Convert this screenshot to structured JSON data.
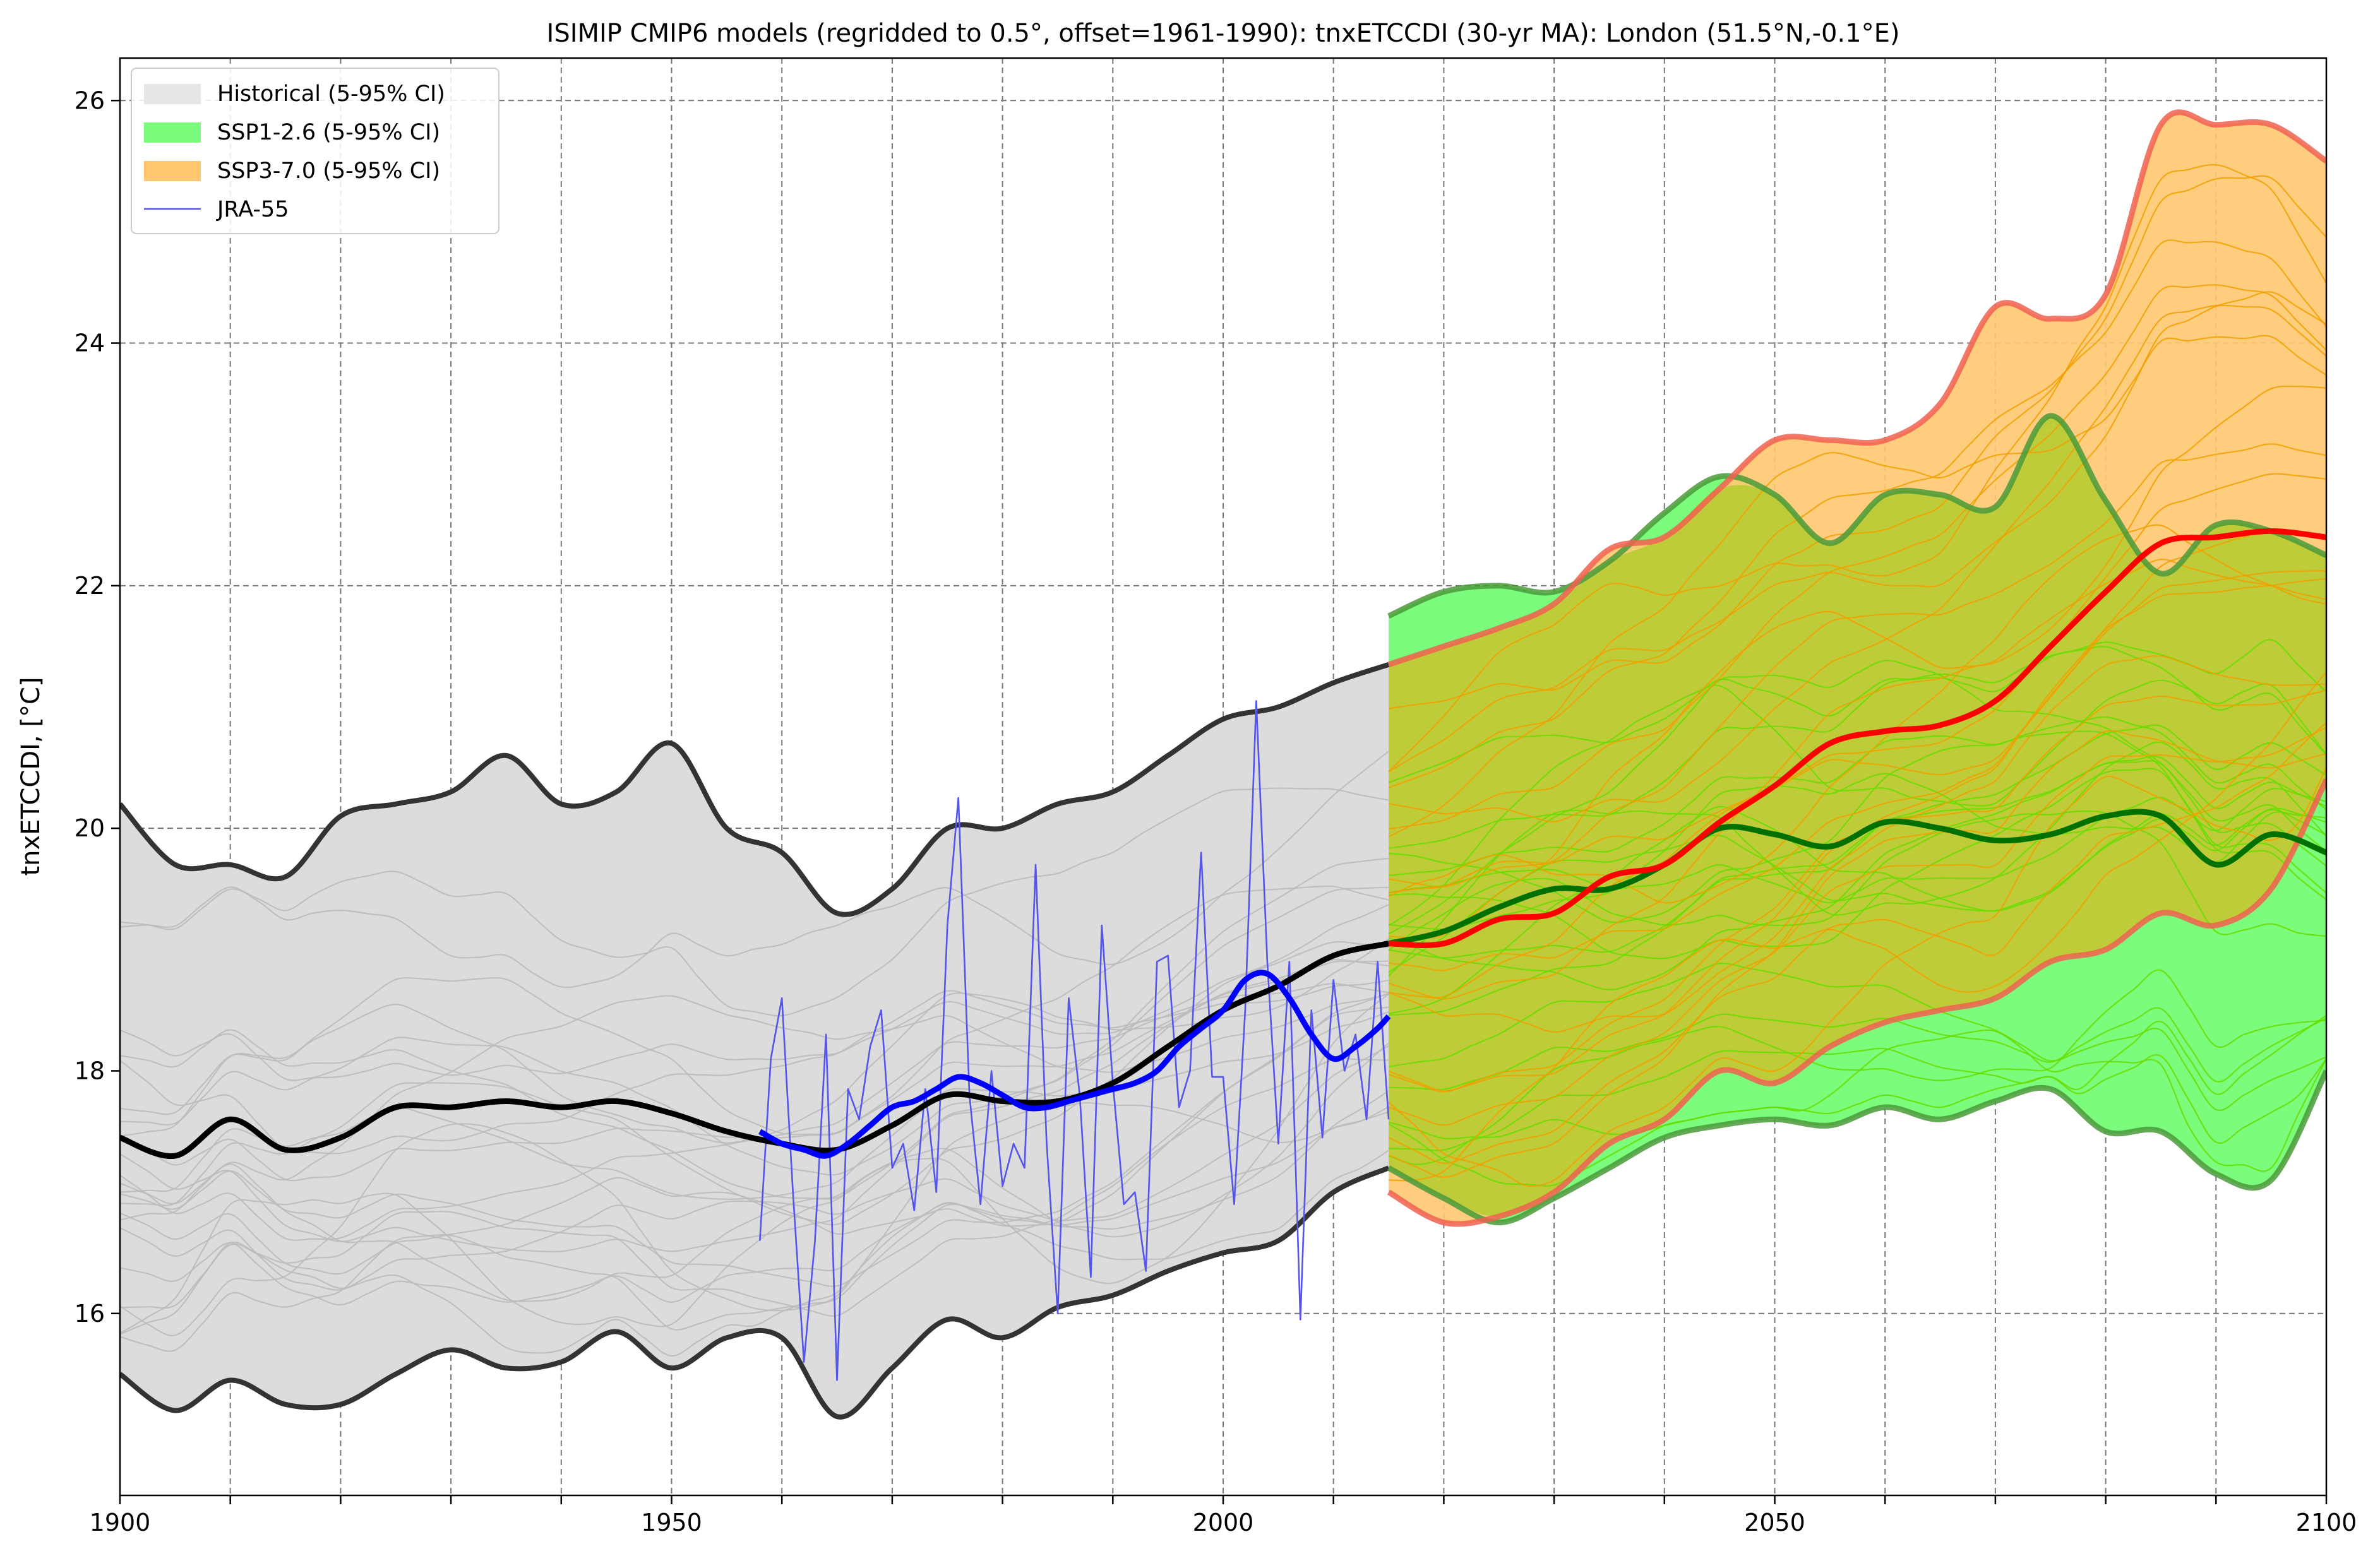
{
  "chart_data": {
    "type": "line",
    "title": "ISIMIP CMIP6 models (regridded to 0.5°, offset=1961-1990): tnxETCCDI (30-yr MA): London (51.5°N,-0.1°E)",
    "xlabel": "",
    "ylabel": "tnxETCCDI, [°C]",
    "xlim": [
      1900,
      2100
    ],
    "ylim": [
      14.5,
      26.35
    ],
    "x_ticks": [
      1900,
      1950,
      2000,
      2050,
      2100
    ],
    "x_minor_grid": [
      1910,
      1920,
      1930,
      1940,
      1960,
      1970,
      1980,
      1990,
      2010,
      2020,
      2030,
      2040,
      2060,
      2070,
      2080,
      2090
    ],
    "y_ticks": [
      16,
      18,
      20,
      22,
      24,
      26
    ],
    "grid": true,
    "legend_position": "top-left",
    "legend": [
      "Historical (5-95% CI)",
      "SSP1-2.6 (5-95% CI)",
      "SSP3-7.0 (5-95% CI)",
      "JRA-55"
    ],
    "colors": {
      "historical_fill": "#dcdcdc",
      "historical_line": "#000000",
      "historical_bound": "#333333",
      "historical_members": "#bbbbbb",
      "ssp126_fill": "#7cfc7c",
      "ssp126_line": "#007000",
      "ssp126_bound": "#4a9a3a",
      "ssp126_members": "#66dd00",
      "ssp370_fill": "#ffc870",
      "ssp370_line": "#ff0000",
      "ssp370_bound": "#f06050",
      "ssp370_members": "#f0a000",
      "jra55": "#5555ee",
      "jra55_smooth": "#0000ff"
    },
    "series": [
      {
        "name": "Historical (5-95% CI)",
        "x": [
          1900,
          1905,
          1910,
          1915,
          1920,
          1925,
          1930,
          1935,
          1940,
          1945,
          1950,
          1955,
          1960,
          1965,
          1970,
          1975,
          1980,
          1985,
          1990,
          1995,
          2000,
          2005,
          2010,
          2015
        ],
        "upper": [
          20.2,
          19.7,
          19.7,
          19.6,
          20.1,
          20.2,
          20.3,
          20.6,
          20.2,
          20.3,
          20.7,
          20.0,
          19.8,
          19.3,
          19.5,
          20.0,
          20.0,
          20.2,
          20.3,
          20.6,
          20.9,
          21.0,
          21.2,
          21.35
        ],
        "lower": [
          15.5,
          15.2,
          15.45,
          15.25,
          15.25,
          15.5,
          15.7,
          15.55,
          15.6,
          15.85,
          15.55,
          15.8,
          15.8,
          15.15,
          15.55,
          15.95,
          15.8,
          16.05,
          16.15,
          16.35,
          16.5,
          16.6,
          17.0,
          17.2
        ],
        "median": [
          17.45,
          17.3,
          17.6,
          17.35,
          17.45,
          17.7,
          17.7,
          17.75,
          17.7,
          17.75,
          17.65,
          17.5,
          17.4,
          17.35,
          17.55,
          17.8,
          17.75,
          17.75,
          17.9,
          18.2,
          18.5,
          18.7,
          18.95,
          19.05
        ]
      },
      {
        "name": "SSP1-2.6 (5-95% CI)",
        "x": [
          2015,
          2020,
          2025,
          2030,
          2035,
          2040,
          2045,
          2050,
          2055,
          2060,
          2065,
          2070,
          2075,
          2080,
          2085,
          2090,
          2095,
          2100
        ],
        "upper": [
          21.75,
          21.95,
          22.0,
          21.95,
          22.2,
          22.6,
          22.9,
          22.75,
          22.35,
          22.75,
          22.75,
          22.65,
          23.4,
          22.7,
          22.1,
          22.5,
          22.45,
          22.25
        ],
        "lower": [
          17.2,
          16.95,
          16.75,
          16.95,
          17.2,
          17.45,
          17.55,
          17.6,
          17.55,
          17.7,
          17.6,
          17.75,
          17.85,
          17.5,
          17.5,
          17.15,
          17.1,
          18.0
        ],
        "median": [
          19.05,
          19.15,
          19.35,
          19.5,
          19.5,
          19.7,
          20.0,
          19.95,
          19.85,
          20.05,
          20.0,
          19.9,
          19.95,
          20.1,
          20.1,
          19.7,
          19.95,
          19.8
        ]
      },
      {
        "name": "SSP3-7.0 (5-95% CI)",
        "x": [
          2015,
          2020,
          2025,
          2030,
          2035,
          2040,
          2045,
          2050,
          2055,
          2060,
          2065,
          2070,
          2075,
          2080,
          2085,
          2090,
          2095,
          2100
        ],
        "upper": [
          21.35,
          21.5,
          21.65,
          21.85,
          22.3,
          22.4,
          22.8,
          23.2,
          23.2,
          23.2,
          23.5,
          24.3,
          24.2,
          24.4,
          25.8,
          25.8,
          25.8,
          25.5
        ],
        "lower": [
          17.0,
          16.75,
          16.8,
          17.0,
          17.4,
          17.6,
          18.0,
          17.9,
          18.2,
          18.4,
          18.5,
          18.6,
          18.9,
          19.0,
          19.3,
          19.2,
          19.5,
          20.4
        ],
        "median": [
          19.05,
          19.05,
          19.25,
          19.3,
          19.6,
          19.7,
          20.05,
          20.35,
          20.7,
          20.8,
          20.85,
          21.05,
          21.5,
          21.95,
          22.35,
          22.4,
          22.45,
          22.4
        ]
      },
      {
        "name": "JRA-55",
        "x": [
          1958,
          1959,
          1960,
          1961,
          1962,
          1963,
          1964,
          1965,
          1966,
          1967,
          1968,
          1969,
          1970,
          1971,
          1972,
          1973,
          1974,
          1975,
          1976,
          1977,
          1978,
          1979,
          1980,
          1981,
          1982,
          1983,
          1984,
          1985,
          1986,
          1987,
          1988,
          1989,
          1990,
          1991,
          1992,
          1993,
          1994,
          1995,
          1996,
          1997,
          1998,
          1999,
          2000,
          2001,
          2002,
          2003,
          2004,
          2005,
          2006,
          2007,
          2008,
          2009,
          2010,
          2011,
          2012,
          2013,
          2014,
          2015
        ],
        "values": [
          16.6,
          18.1,
          18.6,
          17.0,
          15.6,
          16.6,
          18.3,
          15.45,
          17.85,
          17.6,
          18.2,
          18.5,
          17.2,
          17.4,
          16.85,
          17.85,
          17.0,
          19.2,
          20.25,
          17.8,
          16.9,
          18.0,
          17.05,
          17.4,
          17.2,
          19.7,
          17.4,
          16.0,
          18.6,
          17.8,
          16.3,
          19.2,
          17.9,
          16.9,
          17.0,
          16.35,
          18.9,
          18.95,
          17.7,
          18.0,
          19.8,
          17.95,
          17.95,
          16.9,
          18.5,
          21.05,
          18.9,
          17.4,
          18.9,
          15.95,
          18.5,
          17.45,
          18.75,
          18.0,
          18.3,
          17.6,
          18.9,
          17.6
        ],
        "smooth_x": [
          1958,
          1960,
          1962,
          1964,
          1966,
          1968,
          1970,
          1972,
          1974,
          1976,
          1978,
          1980,
          1982,
          1984,
          1986,
          1988,
          1990,
          1992,
          1994,
          1996,
          1998,
          2000,
          2002,
          2004,
          2006,
          2008,
          2010,
          2012,
          2014,
          2015
        ],
        "smooth_values": [
          17.5,
          17.4,
          17.35,
          17.3,
          17.4,
          17.55,
          17.7,
          17.75,
          17.85,
          17.95,
          17.9,
          17.8,
          17.7,
          17.7,
          17.75,
          17.8,
          17.85,
          17.9,
          18.0,
          18.2,
          18.35,
          18.5,
          18.75,
          18.8,
          18.6,
          18.3,
          18.1,
          18.2,
          18.35,
          18.45
        ]
      }
    ]
  }
}
